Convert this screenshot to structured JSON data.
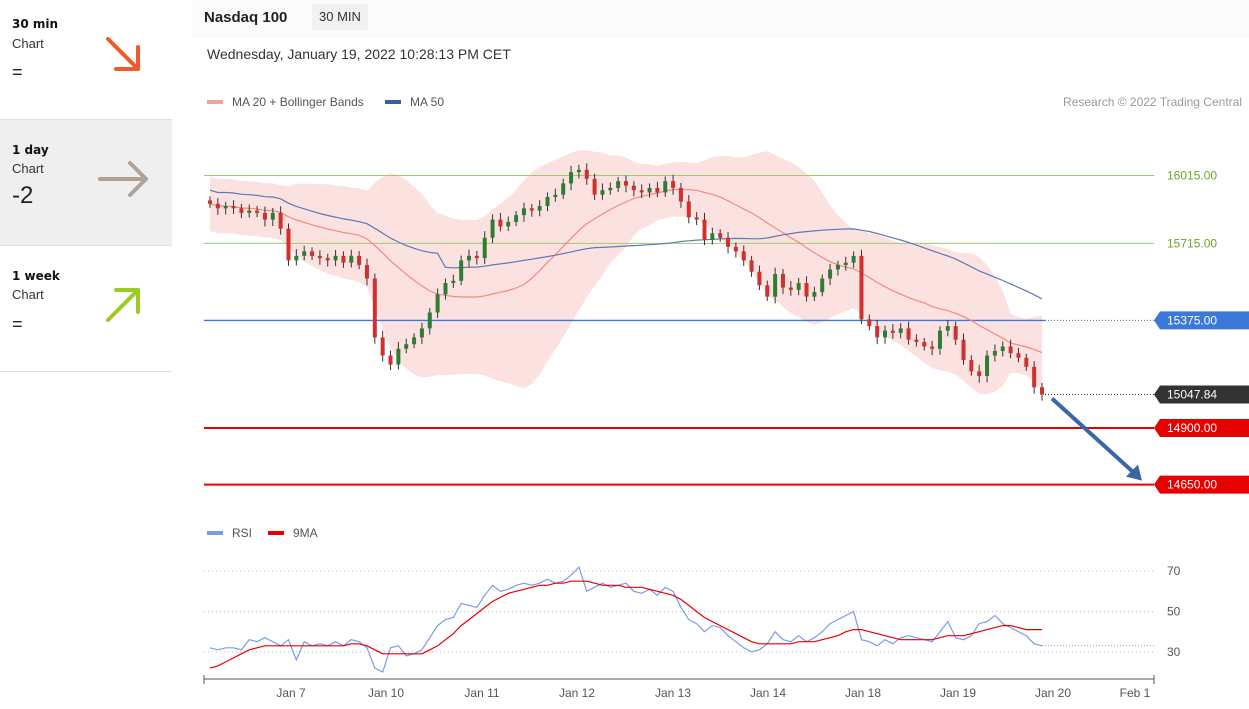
{
  "timeframes": [
    {
      "label": "30 min",
      "sub": "Chart",
      "value": "=",
      "direction": "down",
      "color": "#f05a28"
    },
    {
      "label": "1 day",
      "sub": "Chart",
      "value": "-2",
      "direction": "right",
      "color": "#b0a396"
    },
    {
      "label": "1 week",
      "sub": "Chart",
      "value": "=",
      "direction": "up",
      "color": "#9ccc23"
    }
  ],
  "header": {
    "title": "Nasdaq 100",
    "badge": "30 MIN",
    "datetime": "Wednesday, January 19, 2022 10:28:13 PM CET"
  },
  "legend": {
    "ma20": "MA 20 + Bollinger Bands",
    "ma50": "MA 50",
    "credit": "Research © 2022 Trading Central",
    "rsi": "RSI",
    "ma9": "9MA"
  },
  "colors": {
    "bull": "#2e7d32",
    "bear": "#d32f2f",
    "band": "#fcdcdc",
    "ma20": "#f28b82",
    "ma50": "#5b7bb5",
    "resistance": "#9ccc6a",
    "pivot": "#3c78d8",
    "support": "#e60000",
    "arrow": "#3a66a8",
    "rsi": "#7b9be6",
    "rsi_ma": "#e60000"
  },
  "chart_data": [
    {
      "type": "candlestick",
      "title": "Nasdaq 100",
      "ylim": [
        14560,
        16260
      ],
      "x_ticks": [
        "Jan 7",
        "Jan 10",
        "Jan 11",
        "Jan 12",
        "Jan 13",
        "Jan 14",
        "Jan 18",
        "Jan 19",
        "Jan 20",
        "Feb 1"
      ],
      "closes": [
        15890,
        15870,
        15880,
        15870,
        15850,
        15860,
        15850,
        15820,
        15850,
        15780,
        15640,
        15660,
        15680,
        15660,
        15650,
        15640,
        15660,
        15630,
        15660,
        15620,
        15560,
        15300,
        15220,
        15180,
        15250,
        15270,
        15300,
        15340,
        15410,
        15490,
        15540,
        15550,
        15640,
        15660,
        15650,
        15740,
        15820,
        15790,
        15810,
        15840,
        15870,
        15860,
        15880,
        15920,
        15930,
        15980,
        16030,
        16040,
        16000,
        15930,
        15950,
        15960,
        15990,
        15970,
        15950,
        15940,
        15960,
        15940,
        15990,
        15960,
        15900,
        15830,
        15820,
        15730,
        15760,
        15740,
        15700,
        15680,
        15640,
        15590,
        15530,
        15480,
        15580,
        15520,
        15510,
        15540,
        15480,
        15500,
        15560,
        15600,
        15620,
        15630,
        15660,
        15380,
        15350,
        15300,
        15330,
        15320,
        15340,
        15290,
        15280,
        15260,
        15250,
        15330,
        15350,
        15290,
        15200,
        15150,
        15130,
        15220,
        15240,
        15260,
        15230,
        15210,
        15170,
        15080,
        15047.84
      ],
      "bull_color": "#2e7d32",
      "bear_color": "#d32f2f",
      "overlays": [
        "MA 20 + Bollinger Bands",
        "MA 50"
      ],
      "levels": [
        {
          "value": 16015.0,
          "label": "16015.00",
          "kind": "resistance"
        },
        {
          "value": 15715.0,
          "label": "15715.00",
          "kind": "resistance"
        },
        {
          "value": 15375.0,
          "label": "15375.00",
          "kind": "pivot"
        },
        {
          "value": 15047.84,
          "label": "15047.84",
          "kind": "last"
        },
        {
          "value": 14900.0,
          "label": "14900.00",
          "kind": "support"
        },
        {
          "value": 14650.0,
          "label": "14650.00",
          "kind": "support"
        }
      ],
      "forecast": {
        "from": 15047.84,
        "to": 14650.0,
        "direction": "down"
      }
    },
    {
      "type": "line",
      "title": "RSI",
      "ylim": [
        20,
        78
      ],
      "y_ticks": [
        70,
        50,
        30
      ],
      "series": [
        {
          "name": "RSI",
          "values": [
            32,
            31,
            32,
            32,
            31,
            36,
            35,
            37,
            35,
            33,
            36,
            26,
            35,
            33,
            34,
            33,
            35,
            33,
            36,
            35,
            32,
            22,
            20,
            32,
            33,
            28,
            29,
            31,
            37,
            43,
            46,
            47,
            54,
            53,
            52,
            58,
            63,
            60,
            61,
            63,
            64,
            63,
            64,
            66,
            64,
            65,
            68,
            72,
            60,
            62,
            64,
            62,
            63,
            64,
            60,
            59,
            61,
            58,
            62,
            60,
            52,
            46,
            44,
            40,
            43,
            42,
            38,
            35,
            32,
            30,
            31,
            34,
            40,
            36,
            35,
            38,
            35,
            37,
            40,
            44,
            46,
            48,
            50,
            36,
            35,
            33,
            36,
            34,
            37,
            38,
            37,
            36,
            35,
            40,
            45,
            37,
            36,
            38,
            44,
            45,
            48,
            44,
            42,
            40,
            38,
            34,
            33
          ]
        },
        {
          "name": "9MA",
          "values": [
            22,
            23,
            25,
            27,
            29,
            31,
            32,
            33,
            33,
            33,
            33,
            33,
            33,
            33,
            33,
            33,
            33,
            33,
            34,
            34,
            33,
            31,
            29,
            29,
            29,
            29,
            29,
            29,
            31,
            33,
            36,
            39,
            43,
            46,
            49,
            52,
            55,
            57,
            59,
            60,
            61,
            62,
            63,
            63,
            64,
            64,
            65,
            65,
            65,
            64,
            63,
            63,
            63,
            62,
            62,
            62,
            61,
            60,
            59,
            58,
            56,
            53,
            50,
            47,
            45,
            43,
            41,
            39,
            37,
            35,
            34,
            34,
            34,
            34,
            34,
            35,
            35,
            35,
            36,
            37,
            38,
            40,
            41,
            41,
            40,
            39,
            38,
            37,
            36,
            36,
            36,
            36,
            36,
            37,
            38,
            38,
            38,
            39,
            40,
            41,
            42,
            43,
            43,
            42,
            41,
            41,
            41
          ]
        }
      ]
    }
  ]
}
